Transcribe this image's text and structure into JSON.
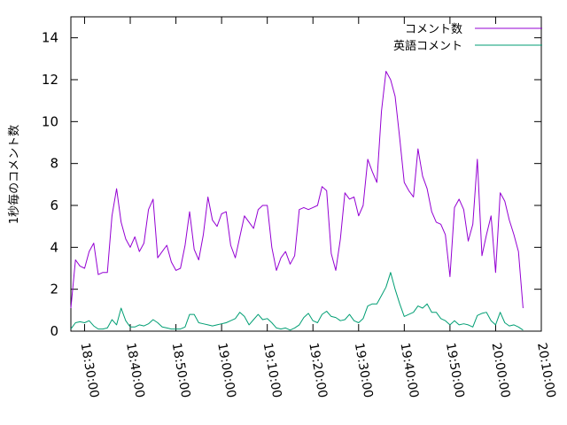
{
  "chart_data": {
    "type": "line",
    "ylabel": "1秒毎のコメント数",
    "xlabel": "",
    "ylim": [
      0,
      15
    ],
    "yticks": [
      0,
      2,
      4,
      6,
      8,
      10,
      12,
      14
    ],
    "xlim": [
      "18:27:00",
      "20:10:00"
    ],
    "xticks": [
      "18:30:00",
      "18:40:00",
      "18:50:00",
      "19:00:00",
      "19:10:00",
      "19:20:00",
      "19:30:00",
      "19:40:00",
      "19:50:00",
      "20:00:00",
      "20:10:00"
    ],
    "grid": false,
    "legend_position": "top-right",
    "series": [
      {
        "name": "コメント数",
        "color": "#9400d3",
        "points": [
          [
            "18:27:00",
            1.1
          ],
          [
            "18:28:00",
            3.4
          ],
          [
            "18:29:00",
            3.1
          ],
          [
            "18:30:00",
            3.0
          ],
          [
            "18:31:00",
            3.8
          ],
          [
            "18:32:00",
            4.2
          ],
          [
            "18:33:00",
            2.7
          ],
          [
            "18:34:00",
            2.8
          ],
          [
            "18:35:00",
            2.8
          ],
          [
            "18:36:00",
            5.5
          ],
          [
            "18:37:00",
            6.8
          ],
          [
            "18:38:00",
            5.2
          ],
          [
            "18:39:00",
            4.4
          ],
          [
            "18:40:00",
            4.0
          ],
          [
            "18:41:00",
            4.5
          ],
          [
            "18:42:00",
            3.8
          ],
          [
            "18:43:00",
            4.2
          ],
          [
            "18:44:00",
            5.8
          ],
          [
            "18:45:00",
            6.3
          ],
          [
            "18:46:00",
            3.5
          ],
          [
            "18:47:00",
            3.8
          ],
          [
            "18:48:00",
            4.1
          ],
          [
            "18:49:00",
            3.3
          ],
          [
            "18:50:00",
            2.9
          ],
          [
            "18:51:00",
            3.0
          ],
          [
            "18:52:00",
            4.1
          ],
          [
            "18:53:00",
            5.7
          ],
          [
            "18:54:00",
            3.9
          ],
          [
            "18:55:00",
            3.4
          ],
          [
            "18:56:00",
            4.6
          ],
          [
            "18:57:00",
            6.4
          ],
          [
            "18:58:00",
            5.3
          ],
          [
            "18:59:00",
            5.0
          ],
          [
            "19:00:00",
            5.6
          ],
          [
            "19:01:00",
            5.7
          ],
          [
            "19:02:00",
            4.1
          ],
          [
            "19:03:00",
            3.5
          ],
          [
            "19:04:00",
            4.5
          ],
          [
            "19:05:00",
            5.5
          ],
          [
            "19:06:00",
            5.2
          ],
          [
            "19:07:00",
            4.9
          ],
          [
            "19:08:00",
            5.8
          ],
          [
            "19:09:00",
            6.0
          ],
          [
            "19:10:00",
            6.0
          ],
          [
            "19:11:00",
            4.0
          ],
          [
            "19:12:00",
            2.9
          ],
          [
            "19:13:00",
            3.5
          ],
          [
            "19:14:00",
            3.8
          ],
          [
            "19:15:00",
            3.2
          ],
          [
            "19:16:00",
            3.6
          ],
          [
            "19:17:00",
            5.8
          ],
          [
            "19:18:00",
            5.9
          ],
          [
            "19:19:00",
            5.8
          ],
          [
            "19:20:00",
            5.9
          ],
          [
            "19:21:00",
            6.0
          ],
          [
            "19:22:00",
            6.9
          ],
          [
            "19:23:00",
            6.7
          ],
          [
            "19:24:00",
            3.7
          ],
          [
            "19:25:00",
            2.9
          ],
          [
            "19:26:00",
            4.4
          ],
          [
            "19:27:00",
            6.6
          ],
          [
            "19:28:00",
            6.3
          ],
          [
            "19:29:00",
            6.4
          ],
          [
            "19:30:00",
            5.5
          ],
          [
            "19:31:00",
            6.0
          ],
          [
            "19:32:00",
            8.2
          ],
          [
            "19:33:00",
            7.6
          ],
          [
            "19:34:00",
            7.1
          ],
          [
            "19:35:00",
            10.5
          ],
          [
            "19:36:00",
            12.4
          ],
          [
            "19:37:00",
            12.0
          ],
          [
            "19:38:00",
            11.2
          ],
          [
            "19:39:00",
            9.2
          ],
          [
            "19:40:00",
            7.1
          ],
          [
            "19:41:00",
            6.7
          ],
          [
            "19:42:00",
            6.4
          ],
          [
            "19:43:00",
            8.7
          ],
          [
            "19:44:00",
            7.4
          ],
          [
            "19:45:00",
            6.8
          ],
          [
            "19:46:00",
            5.7
          ],
          [
            "19:47:00",
            5.2
          ],
          [
            "19:48:00",
            5.1
          ],
          [
            "19:49:00",
            4.6
          ],
          [
            "19:50:00",
            2.6
          ],
          [
            "19:51:00",
            5.9
          ],
          [
            "19:52:00",
            6.3
          ],
          [
            "19:53:00",
            5.8
          ],
          [
            "19:54:00",
            4.3
          ],
          [
            "19:55:00",
            5.1
          ],
          [
            "19:56:00",
            8.2
          ],
          [
            "19:57:00",
            3.6
          ],
          [
            "19:58:00",
            4.6
          ],
          [
            "19:59:00",
            5.5
          ],
          [
            "20:00:00",
            2.8
          ],
          [
            "20:01:00",
            6.6
          ],
          [
            "20:02:00",
            6.2
          ],
          [
            "20:03:00",
            5.3
          ],
          [
            "20:04:00",
            4.6
          ],
          [
            "20:05:00",
            3.8
          ],
          [
            "20:06:00",
            1.1
          ]
        ]
      },
      {
        "name": "英語コメント",
        "color": "#009e73",
        "points": [
          [
            "18:27:00",
            0.1
          ],
          [
            "18:28:00",
            0.4
          ],
          [
            "18:29:00",
            0.45
          ],
          [
            "18:30:00",
            0.4
          ],
          [
            "18:31:00",
            0.5
          ],
          [
            "18:32:00",
            0.25
          ],
          [
            "18:33:00",
            0.1
          ],
          [
            "18:34:00",
            0.1
          ],
          [
            "18:35:00",
            0.15
          ],
          [
            "18:36:00",
            0.55
          ],
          [
            "18:37:00",
            0.3
          ],
          [
            "18:38:00",
            1.1
          ],
          [
            "18:39:00",
            0.5
          ],
          [
            "18:40:00",
            0.2
          ],
          [
            "18:41:00",
            0.2
          ],
          [
            "18:42:00",
            0.3
          ],
          [
            "18:43:00",
            0.25
          ],
          [
            "18:44:00",
            0.35
          ],
          [
            "18:45:00",
            0.55
          ],
          [
            "18:46:00",
            0.4
          ],
          [
            "18:47:00",
            0.2
          ],
          [
            "18:48:00",
            0.15
          ],
          [
            "18:49:00",
            0.1
          ],
          [
            "18:50:00",
            0.1
          ],
          [
            "18:51:00",
            0.1
          ],
          [
            "18:52:00",
            0.2
          ],
          [
            "18:53:00",
            0.8
          ],
          [
            "18:54:00",
            0.8
          ],
          [
            "18:55:00",
            0.4
          ],
          [
            "18:56:00",
            0.35
          ],
          [
            "18:57:00",
            0.3
          ],
          [
            "18:58:00",
            0.25
          ],
          [
            "18:59:00",
            0.3
          ],
          [
            "19:00:00",
            0.35
          ],
          [
            "19:01:00",
            0.4
          ],
          [
            "19:02:00",
            0.5
          ],
          [
            "19:03:00",
            0.6
          ],
          [
            "19:04:00",
            0.9
          ],
          [
            "19:05:00",
            0.7
          ],
          [
            "19:06:00",
            0.3
          ],
          [
            "19:07:00",
            0.55
          ],
          [
            "19:08:00",
            0.8
          ],
          [
            "19:09:00",
            0.55
          ],
          [
            "19:10:00",
            0.6
          ],
          [
            "19:11:00",
            0.4
          ],
          [
            "19:12:00",
            0.15
          ],
          [
            "19:13:00",
            0.1
          ],
          [
            "19:14:00",
            0.15
          ],
          [
            "19:15:00",
            0.05
          ],
          [
            "19:16:00",
            0.15
          ],
          [
            "19:17:00",
            0.3
          ],
          [
            "19:18:00",
            0.65
          ],
          [
            "19:19:00",
            0.85
          ],
          [
            "19:20:00",
            0.5
          ],
          [
            "19:21:00",
            0.4
          ],
          [
            "19:22:00",
            0.8
          ],
          [
            "19:23:00",
            0.95
          ],
          [
            "19:24:00",
            0.7
          ],
          [
            "19:25:00",
            0.65
          ],
          [
            "19:26:00",
            0.5
          ],
          [
            "19:27:00",
            0.55
          ],
          [
            "19:28:00",
            0.8
          ],
          [
            "19:29:00",
            0.5
          ],
          [
            "19:30:00",
            0.4
          ],
          [
            "19:31:00",
            0.6
          ],
          [
            "19:32:00",
            1.2
          ],
          [
            "19:33:00",
            1.3
          ],
          [
            "19:34:00",
            1.3
          ],
          [
            "19:35:00",
            1.7
          ],
          [
            "19:36:00",
            2.1
          ],
          [
            "19:37:00",
            2.8
          ],
          [
            "19:38:00",
            2.0
          ],
          [
            "19:39:00",
            1.3
          ],
          [
            "19:40:00",
            0.7
          ],
          [
            "19:41:00",
            0.8
          ],
          [
            "19:42:00",
            0.9
          ],
          [
            "19:43:00",
            1.2
          ],
          [
            "19:44:00",
            1.1
          ],
          [
            "19:45:00",
            1.3
          ],
          [
            "19:46:00",
            0.9
          ],
          [
            "19:47:00",
            0.9
          ],
          [
            "19:48:00",
            0.6
          ],
          [
            "19:49:00",
            0.5
          ],
          [
            "19:50:00",
            0.3
          ],
          [
            "19:51:00",
            0.5
          ],
          [
            "19:52:00",
            0.3
          ],
          [
            "19:53:00",
            0.35
          ],
          [
            "19:54:00",
            0.3
          ],
          [
            "19:55:00",
            0.2
          ],
          [
            "19:56:00",
            0.75
          ],
          [
            "19:57:00",
            0.85
          ],
          [
            "19:58:00",
            0.9
          ],
          [
            "19:59:00",
            0.5
          ],
          [
            "20:00:00",
            0.3
          ],
          [
            "20:01:00",
            0.9
          ],
          [
            "20:02:00",
            0.4
          ],
          [
            "20:03:00",
            0.25
          ],
          [
            "20:04:00",
            0.3
          ],
          [
            "20:05:00",
            0.2
          ],
          [
            "20:06:00",
            0.05
          ]
        ]
      }
    ]
  }
}
